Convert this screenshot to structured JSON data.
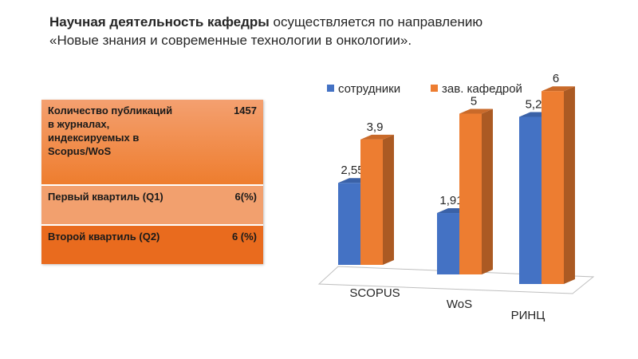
{
  "heading": {
    "bold": "Научная деятельность кафедры",
    "rest": " осуществляется по направлению «Новые знания и современные технологии в онкологии»."
  },
  "stats_table": {
    "rows": [
      {
        "label": "Количество публикаций в журналах, индексируемых  в Scopus/WoS",
        "value": "1457"
      },
      {
        "label": "Первый квартиль (Q1)",
        "value": "6(%)"
      },
      {
        "label": "Второй квартиль (Q2)",
        "value": "6 (%)"
      }
    ]
  },
  "chart_data": {
    "type": "bar",
    "categories": [
      "SCOPUS",
      "WoS",
      "РИНЦ"
    ],
    "series": [
      {
        "name": "сотрудники",
        "values": [
          2.55,
          1.91,
          5.2
        ],
        "labels": [
          "2,55",
          "1,91",
          "5,2"
        ],
        "color": "#4472C4"
      },
      {
        "name": "зав. кафедрой",
        "values": [
          3.9,
          5,
          6
        ],
        "labels": [
          "3,9",
          "5",
          "6"
        ],
        "color": "#ED7D31"
      }
    ],
    "ylim": [
      0,
      6
    ],
    "grid": false,
    "legend_position": "top",
    "style": "3d"
  }
}
